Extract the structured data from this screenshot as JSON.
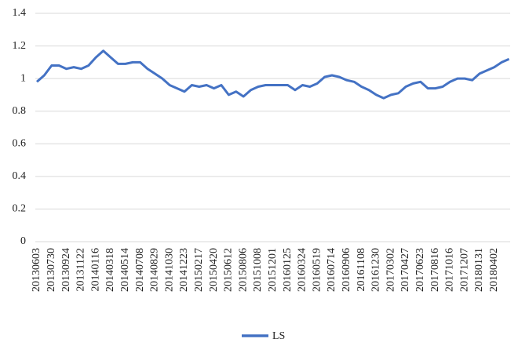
{
  "chart_data": {
    "type": "line",
    "categories": [
      "20130603",
      null,
      "20130730",
      null,
      "20130924",
      null,
      "20131122",
      null,
      "20140116",
      null,
      "20140318",
      null,
      "20140514",
      null,
      "20140708",
      null,
      "20140829",
      null,
      "20141030",
      null,
      "20141223",
      null,
      "20150217",
      null,
      "20150420",
      null,
      "20150612",
      null,
      "20150806",
      null,
      "20151008",
      null,
      "20151201",
      null,
      "20160125",
      null,
      "20160324",
      null,
      "20160519",
      null,
      "20160714",
      null,
      "20160906",
      null,
      "20161108",
      null,
      "20161230",
      null,
      "20170302",
      null,
      "20170427",
      null,
      "20170623",
      null,
      "20170816",
      null,
      "20171016",
      null,
      "20171207",
      null,
      "20180131",
      null,
      "20180402",
      null,
      null
    ],
    "series": [
      {
        "name": "LS",
        "color": "#4472c4",
        "values": [
          0.98,
          1.02,
          1.08,
          1.08,
          1.06,
          1.07,
          1.06,
          1.08,
          1.13,
          1.17,
          1.13,
          1.09,
          1.09,
          1.1,
          1.1,
          1.06,
          1.03,
          1.0,
          0.96,
          0.94,
          0.92,
          0.96,
          0.95,
          0.96,
          0.94,
          0.96,
          0.9,
          0.92,
          0.89,
          0.93,
          0.95,
          0.96,
          0.96,
          0.96,
          0.96,
          0.93,
          0.96,
          0.95,
          0.97,
          1.01,
          1.02,
          1.01,
          0.99,
          0.98,
          0.95,
          0.93,
          0.9,
          0.88,
          0.9,
          0.91,
          0.95,
          0.97,
          0.98,
          0.94,
          0.94,
          0.95,
          0.98,
          1.0,
          1.0,
          0.99,
          1.03,
          1.05,
          1.07,
          1.1,
          1.12
        ]
      }
    ],
    "ylim": [
      0,
      1.4
    ],
    "yticks": [
      0,
      0.2,
      0.4,
      0.6,
      0.8,
      1,
      1.2,
      1.4
    ],
    "grid": true,
    "legend": "bottom"
  }
}
